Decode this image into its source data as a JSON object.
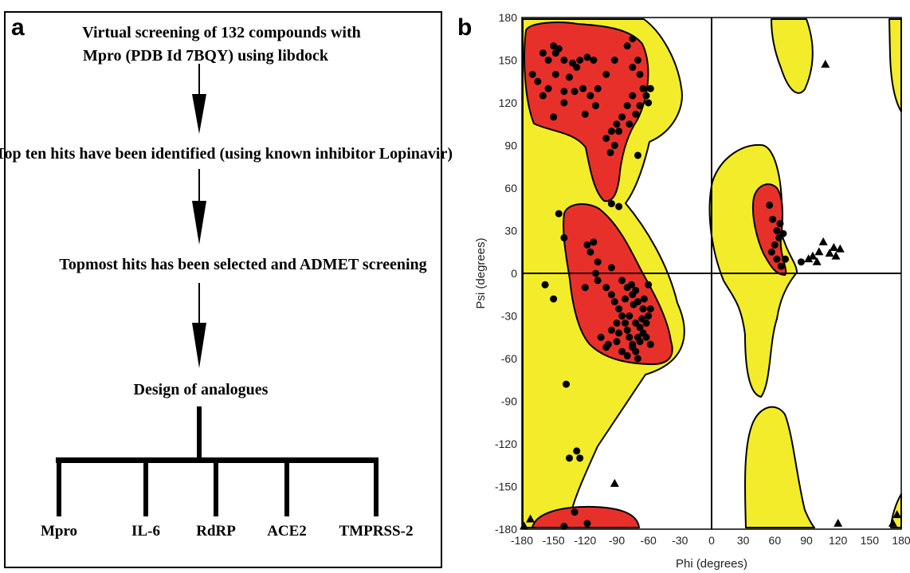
{
  "panel_a": {
    "letter": "a",
    "steps": [
      "Virtual screening of 132 compounds with",
      "Mpro (PDB Id 7BQY) using libdock",
      "Top ten hits have been identified (using known inhibitor Lopinavir)",
      "Topmost hits has been selected and ADMET screening",
      "Design of analogues"
    ],
    "targets": [
      "Mpro",
      "IL-6",
      "RdRP",
      "ACE2",
      "TMPRSS-2"
    ]
  },
  "panel_b": {
    "letter": "b",
    "chart_data": {
      "type": "scatter",
      "title": "",
      "xlabel": "Phi (degrees)",
      "ylabel": "Psi (degrees)",
      "xlim": [
        -180,
        180
      ],
      "ylim": [
        -180,
        180
      ],
      "xticks": [
        -180,
        -150,
        -120,
        -90,
        -60,
        -30,
        0,
        30,
        60,
        90,
        120,
        150,
        180
      ],
      "yticks": [
        180,
        150,
        120,
        90,
        60,
        30,
        0,
        -30,
        -60,
        -90,
        -120,
        -150,
        -180
      ],
      "colors": {
        "core": "#e8302a",
        "allowed": "#f2ec2a",
        "outline": "#000000"
      },
      "series": [
        {
          "marker": "circle",
          "points": [
            [
              -160,
              155
            ],
            [
              -155,
              150
            ],
            [
              -150,
              160
            ],
            [
              -148,
              155
            ],
            [
              -145,
              158
            ],
            [
              -140,
              150
            ],
            [
              -132,
              148
            ],
            [
              -125,
              150
            ],
            [
              -118,
              152
            ],
            [
              -112,
              150
            ],
            [
              -165,
              135
            ],
            [
              -155,
              130
            ],
            [
              -148,
              140
            ],
            [
              -140,
              128
            ],
            [
              -130,
              128
            ],
            [
              -122,
              130
            ],
            [
              -115,
              125
            ],
            [
              -108,
              130
            ],
            [
              -100,
              140
            ],
            [
              -92,
              150
            ],
            [
              -80,
              160
            ],
            [
              -75,
              165
            ],
            [
              -70,
              150
            ],
            [
              -68,
              140
            ],
            [
              -65,
              130
            ],
            [
              -62,
              125
            ],
            [
              -58,
              130
            ],
            [
              -75,
              125
            ],
            [
              -80,
              118
            ],
            [
              -85,
              110
            ],
            [
              -90,
              105
            ],
            [
              -95,
              100
            ],
            [
              -100,
              95
            ],
            [
              -92,
              90
            ],
            [
              -88,
              100
            ],
            [
              -75,
              145
            ],
            [
              -72,
              112
            ],
            [
              -68,
              118
            ],
            [
              -60,
              120
            ],
            [
              -78,
              105
            ],
            [
              -150,
              110
            ],
            [
              -140,
              120
            ],
            [
              -120,
              112
            ],
            [
              -110,
              118
            ],
            [
              -160,
              125
            ],
            [
              -170,
              140
            ],
            [
              -135,
              138
            ],
            [
              -128,
              145
            ],
            [
              -70,
              83
            ],
            [
              -96,
              85
            ],
            [
              -145,
              42
            ],
            [
              -140,
              25
            ],
            [
              -158,
              -8
            ],
            [
              -150,
              -18
            ],
            [
              -138,
              -78
            ],
            [
              -135,
              -130
            ],
            [
              -128,
              -125
            ],
            [
              -125,
              -130
            ],
            [
              -95,
              49
            ],
            [
              -88,
              47
            ],
            [
              -118,
              20
            ],
            [
              -115,
              15
            ],
            [
              -112,
              22
            ],
            [
              -108,
              -5
            ],
            [
              -100,
              -10
            ],
            [
              -95,
              -15
            ],
            [
              -92,
              -20
            ],
            [
              -88,
              -25
            ],
            [
              -85,
              -30
            ],
            [
              -82,
              -35
            ],
            [
              -80,
              -40
            ],
            [
              -78,
              -45
            ],
            [
              -75,
              -50
            ],
            [
              -72,
              -55
            ],
            [
              -70,
              -60
            ],
            [
              -68,
              -48
            ],
            [
              -65,
              -42
            ],
            [
              -62,
              -35
            ],
            [
              -60,
              -30
            ],
            [
              -58,
              -25
            ],
            [
              -85,
              -5
            ],
            [
              -80,
              -10
            ],
            [
              -75,
              -15
            ],
            [
              -70,
              -20
            ],
            [
              -65,
              -25
            ],
            [
              -78,
              -30
            ],
            [
              -72,
              -35
            ],
            [
              -68,
              -38
            ],
            [
              -62,
              -45
            ],
            [
              -58,
              -50
            ],
            [
              -90,
              -35
            ],
            [
              -95,
              -40
            ],
            [
              -98,
              -50
            ],
            [
              -85,
              -55
            ],
            [
              -80,
              -58
            ],
            [
              -75,
              -52
            ],
            [
              -70,
              -45
            ],
            [
              -66,
              -32
            ],
            [
              -74,
              -22
            ],
            [
              -82,
              -18
            ],
            [
              -76,
              -8
            ],
            [
              -72,
              -12
            ],
            [
              -64,
              -18
            ],
            [
              -60,
              -8
            ],
            [
              -105,
              -45
            ],
            [
              -100,
              -52
            ],
            [
              -90,
              -48
            ],
            [
              -88,
              -42
            ],
            [
              -110,
              0
            ],
            [
              -120,
              -10
            ],
            [
              -95,
              4
            ],
            [
              -108,
              8
            ],
            [
              -130,
              -168
            ],
            [
              -118,
              -176
            ],
            [
              -140,
              -178
            ],
            [
              55,
              48
            ],
            [
              58,
              38
            ],
            [
              62,
              30
            ],
            [
              65,
              35
            ],
            [
              60,
              20
            ],
            [
              57,
              15
            ],
            [
              64,
              25
            ],
            [
              68,
              28
            ],
            [
              70,
              10
            ],
            [
              66,
              5
            ],
            [
              85,
              8
            ],
            [
              62,
              10
            ]
          ]
        },
        {
          "marker": "triangle",
          "points": [
            [
              108,
              147
            ],
            [
              92,
              10
            ],
            [
              96,
              12
            ],
            [
              100,
              8
            ],
            [
              102,
              15
            ],
            [
              106,
              22
            ],
            [
              112,
              14
            ],
            [
              116,
              18
            ],
            [
              118,
              12
            ],
            [
              122,
              17
            ],
            [
              -92,
              -148
            ],
            [
              -172,
              -173
            ],
            [
              -178,
              -178
            ],
            [
              120,
              -176
            ],
            [
              172,
              -176
            ],
            [
              176,
              -170
            ]
          ]
        }
      ]
    }
  }
}
